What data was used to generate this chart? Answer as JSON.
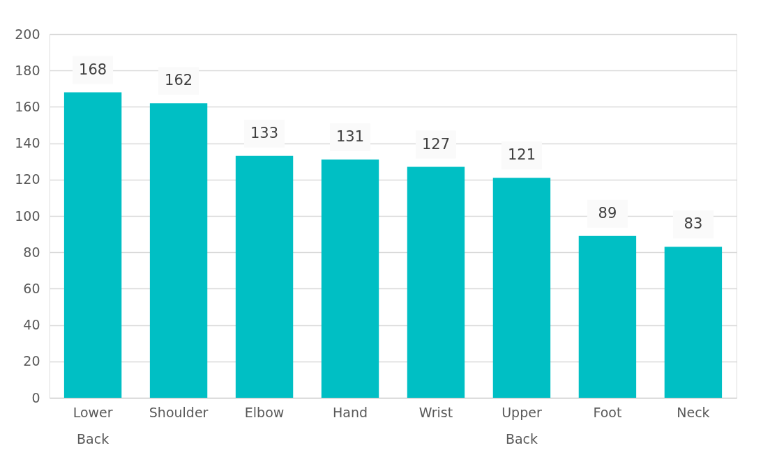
{
  "chart_data": {
    "type": "bar",
    "categories": [
      "Lower Back",
      "Shoulder",
      "Elbow",
      "Hand",
      "Wrist",
      "Upper Back",
      "Foot",
      "Neck"
    ],
    "values": [
      168,
      162,
      133,
      131,
      127,
      121,
      89,
      83
    ],
    "color": "#00bfc4",
    "ylim": [
      0,
      200
    ],
    "yticks": [
      0,
      20,
      40,
      60,
      80,
      100,
      120,
      140,
      160,
      180,
      200
    ],
    "grid": "y",
    "data_labels": true
  }
}
